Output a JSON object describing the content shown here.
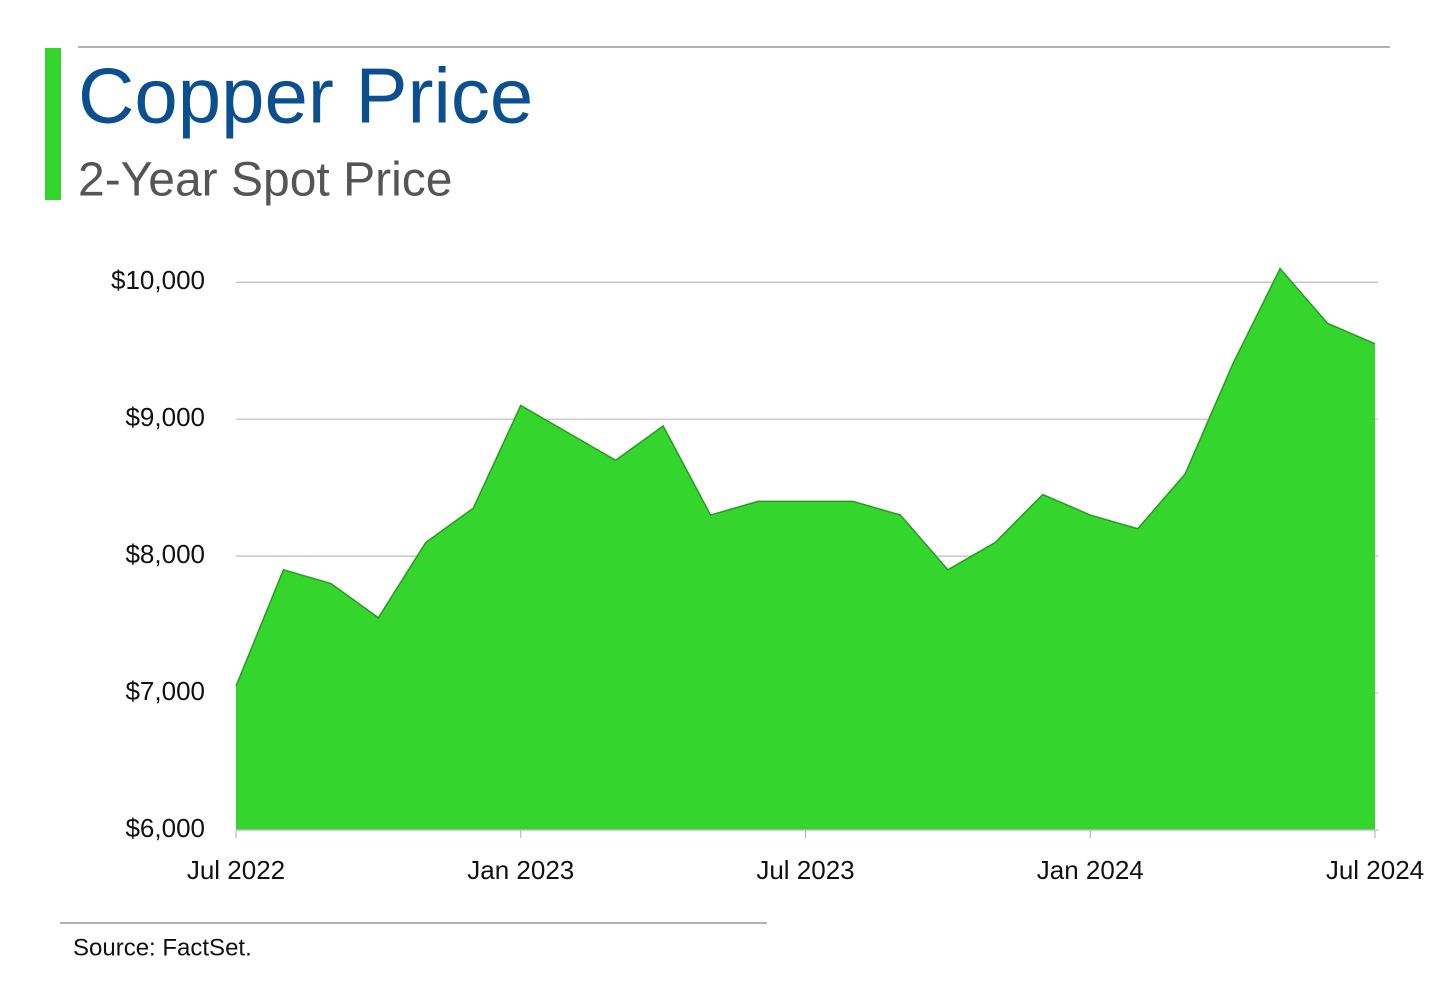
{
  "chart_data": {
    "type": "area",
    "title": "Copper Price",
    "subtitle": "2-Year Spot Price",
    "source": "Source: FactSet.",
    "x": [
      "2022-07",
      "2022-08",
      "2022-09",
      "2022-10",
      "2022-11",
      "2022-12",
      "2023-01",
      "2023-02",
      "2023-03",
      "2023-04",
      "2023-05",
      "2023-06",
      "2023-07",
      "2023-08",
      "2023-09",
      "2023-10",
      "2023-11",
      "2023-12",
      "2024-01",
      "2024-02",
      "2024-03",
      "2024-04",
      "2024-05",
      "2024-06",
      "2024-07"
    ],
    "values": [
      7050,
      7900,
      7800,
      7550,
      8100,
      8350,
      9100,
      8900,
      8700,
      8950,
      8300,
      8400,
      8400,
      8400,
      8300,
      7900,
      8100,
      8450,
      8300,
      8200,
      8600,
      9400,
      10100,
      9700,
      9550
    ],
    "color": "#34d62e",
    "line_color": "#2a9a22",
    "ylim": [
      6000,
      10900
    ],
    "yticks": [
      {
        "value": 6000,
        "label": "$6,000"
      },
      {
        "value": 7000,
        "label": "$7,000"
      },
      {
        "value": 8000,
        "label": "$8,000"
      },
      {
        "value": 9000,
        "label": "$9,000"
      },
      {
        "value": 10000,
        "label": "$10,000"
      }
    ],
    "xticks": [
      {
        "value": "2022-07",
        "label": "Jul 2022"
      },
      {
        "value": "2023-01",
        "label": "Jan 2023"
      },
      {
        "value": "2023-07",
        "label": "Jul 2023"
      },
      {
        "value": "2024-01",
        "label": "Jan 2024"
      },
      {
        "value": "2024-07",
        "label": "Jul 2024"
      }
    ],
    "grid": true
  }
}
